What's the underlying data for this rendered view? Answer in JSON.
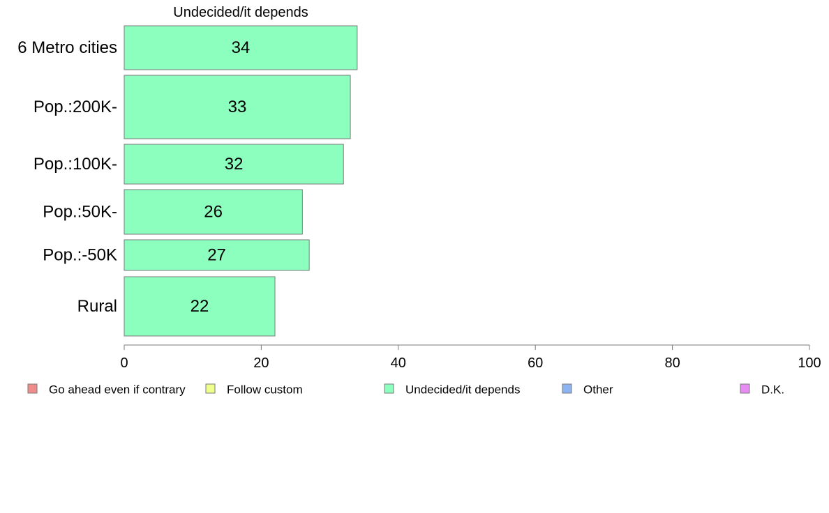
{
  "chart_data": {
    "type": "bar",
    "orientation": "horizontal",
    "title": "Undecided/it depends",
    "categories": [
      "6 Metro cities",
      "Pop.:200K-",
      "Pop.:100K-",
      "Pop.:50K-",
      "Pop.:-50K",
      "Rural"
    ],
    "series": [
      {
        "name": "Undecided/it depends",
        "values": [
          34,
          33,
          32,
          26,
          27,
          22
        ],
        "color": "#8cffbe"
      }
    ],
    "data_labels": [
      "34",
      "33",
      "32",
      "26",
      "27",
      "22"
    ],
    "xlim": [
      0,
      100
    ],
    "x_ticks": [
      0,
      20,
      40,
      60,
      80,
      100
    ],
    "x_tick_labels": [
      "0",
      "20",
      "40",
      "60",
      "80",
      "100"
    ],
    "legend_position": "bottom",
    "legend": [
      {
        "label": "Go ahead even if contrary",
        "color": "#f28c8c"
      },
      {
        "label": "Follow custom",
        "color": "#eeff8c"
      },
      {
        "label": "Undecided/it depends",
        "color": "#8cffbe"
      },
      {
        "label": "Other",
        "color": "#8cb4f2"
      },
      {
        "label": "D.K.",
        "color": "#e68cf2"
      }
    ]
  }
}
